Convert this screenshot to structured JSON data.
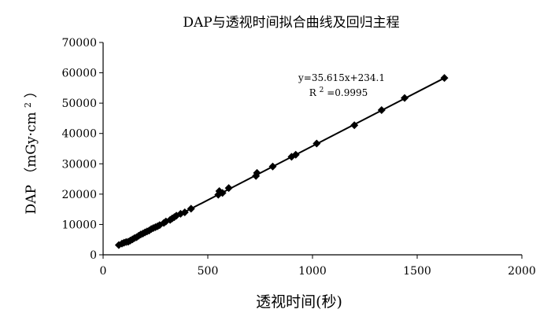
{
  "chart_data": {
    "type": "scatter",
    "title": "DAP与透视时间拟合曲线及回归主程",
    "xlabel": "透视时间(秒)",
    "ylabel_main": "DAP",
    "ylabel_unit_open": "（mGy·cm",
    "ylabel_unit_sup": "2",
    "ylabel_unit_close": "）",
    "xlim": [
      0,
      2000
    ],
    "ylim": [
      0,
      70000
    ],
    "x_ticks": [
      0,
      500,
      1000,
      1500,
      2000
    ],
    "y_ticks": [
      0,
      10000,
      20000,
      30000,
      40000,
      50000,
      60000,
      70000
    ],
    "x_tick_labels": [
      "0",
      "500",
      "1000",
      "1500",
      "2000"
    ],
    "y_tick_labels": [
      "0",
      "10000",
      "20000",
      "30000",
      "40000",
      "50000",
      "60000",
      "70000"
    ],
    "grid": false,
    "legend": "none",
    "trendline": {
      "slope": 35.615,
      "intercept": 234.1,
      "x_range": [
        75,
        1630
      ]
    },
    "annotation": {
      "equation": "y=35.615x+234.1",
      "r2_prefix": "R",
      "r2_sup": "2",
      "r2_value": "=0.9995"
    },
    "series": [
      {
        "marker": "diamond",
        "color": "#000000",
        "points": [
          [
            75,
            3200
          ],
          [
            90,
            3700
          ],
          [
            100,
            4000
          ],
          [
            110,
            4200
          ],
          [
            120,
            4300
          ],
          [
            130,
            4700
          ],
          [
            140,
            5100
          ],
          [
            150,
            5500
          ],
          [
            160,
            5800
          ],
          [
            170,
            6300
          ],
          [
            180,
            6700
          ],
          [
            190,
            7000
          ],
          [
            200,
            7400
          ],
          [
            210,
            7700
          ],
          [
            220,
            8000
          ],
          [
            230,
            8500
          ],
          [
            240,
            8800
          ],
          [
            250,
            9100
          ],
          [
            260,
            9400
          ],
          [
            270,
            9800
          ],
          [
            290,
            10500
          ],
          [
            300,
            11000
          ],
          [
            320,
            11500
          ],
          [
            330,
            12000
          ],
          [
            340,
            12400
          ],
          [
            350,
            12900
          ],
          [
            370,
            13500
          ],
          [
            390,
            14000
          ],
          [
            420,
            15200
          ],
          [
            550,
            19800
          ],
          [
            555,
            21000
          ],
          [
            570,
            20400
          ],
          [
            600,
            22000
          ],
          [
            730,
            26000
          ],
          [
            735,
            27000
          ],
          [
            810,
            29100
          ],
          [
            900,
            32300
          ],
          [
            920,
            33000
          ],
          [
            1020,
            36700
          ],
          [
            1200,
            42700
          ],
          [
            1330,
            47700
          ],
          [
            1440,
            51700
          ],
          [
            1630,
            58300
          ]
        ]
      }
    ],
    "colors": {
      "axis": "#000000",
      "marker": "#000000",
      "line": "#000000",
      "background": "#ffffff"
    }
  }
}
